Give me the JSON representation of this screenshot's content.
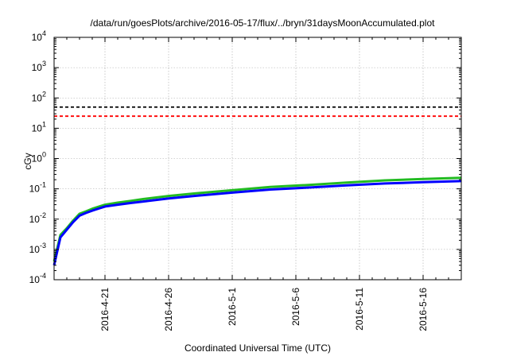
{
  "chart_data": {
    "type": "line",
    "title": "/data/run/goesPlots/archive/2016-05-17/flux/../bryn/31daysMoonAccumulated.plot",
    "xlabel": "Coordinated Universal Time (UTC)",
    "ylabel": "cGy",
    "y_scale": "log",
    "ylim": [
      0.0001,
      10000
    ],
    "xlim": [
      "2016-04-17",
      "2016-05-19"
    ],
    "grid": true,
    "legend": "none",
    "y_ticks": [
      {
        "value": 0.0001,
        "base": "10",
        "exp": "-4"
      },
      {
        "value": 0.001,
        "base": "10",
        "exp": "-3"
      },
      {
        "value": 0.01,
        "base": "10",
        "exp": "-2"
      },
      {
        "value": 0.1,
        "base": "10",
        "exp": "-1"
      },
      {
        "value": 1,
        "base": "10",
        "exp": "0"
      },
      {
        "value": 10,
        "base": "10",
        "exp": "1"
      },
      {
        "value": 100,
        "base": "10",
        "exp": "2"
      },
      {
        "value": 1000,
        "base": "10",
        "exp": "3"
      },
      {
        "value": 10000,
        "base": "10",
        "exp": "4"
      }
    ],
    "x_ticks": [
      "2016-4-21",
      "2016-4-26",
      "2016-5-1",
      "2016-5-6",
      "2016-5-11",
      "2016-5-16"
    ],
    "reference_lines": [
      {
        "value": 50,
        "color": "#000000"
      },
      {
        "value": 25,
        "color": "#ff0000"
      }
    ],
    "series": [
      {
        "color": "#22bb22",
        "x": [
          "2016-04-17 00:00",
          "2016-04-17 12:00",
          "2016-04-18 00:00",
          "2016-04-18 12:00",
          "2016-04-19 00:00",
          "2016-04-19 12:00",
          "2016-04-20 00:00",
          "2016-04-21 00:00",
          "2016-04-22 00:00",
          "2016-04-23 00:00",
          "2016-04-24 00:00",
          "2016-04-26 00:00",
          "2016-04-28 00:00",
          "2016-05-01 00:00",
          "2016-05-04 00:00",
          "2016-05-07 00:00",
          "2016-05-10 00:00",
          "2016-05-13 00:00",
          "2016-05-16 00:00",
          "2016-05-19 00:00"
        ],
        "values": [
          0.0004,
          0.003,
          0.005,
          0.009,
          0.015,
          0.018,
          0.022,
          0.03,
          0.035,
          0.04,
          0.046,
          0.058,
          0.07,
          0.09,
          0.115,
          0.135,
          0.16,
          0.19,
          0.21,
          0.23
        ]
      },
      {
        "color": "#0000ff",
        "x": [
          "2016-04-17 00:00",
          "2016-04-17 12:00",
          "2016-04-18 00:00",
          "2016-04-18 12:00",
          "2016-04-19 00:00",
          "2016-04-19 12:00",
          "2016-04-20 00:00",
          "2016-04-21 00:00",
          "2016-04-22 00:00",
          "2016-04-23 00:00",
          "2016-04-24 00:00",
          "2016-04-26 00:00",
          "2016-04-28 00:00",
          "2016-05-01 00:00",
          "2016-05-04 00:00",
          "2016-05-07 00:00",
          "2016-05-10 00:00",
          "2016-05-13 00:00",
          "2016-05-16 00:00",
          "2016-05-19 00:00"
        ],
        "values": [
          0.0003,
          0.0025,
          0.0045,
          0.008,
          0.013,
          0.016,
          0.019,
          0.026,
          0.03,
          0.034,
          0.038,
          0.048,
          0.058,
          0.075,
          0.095,
          0.11,
          0.13,
          0.15,
          0.165,
          0.18
        ]
      }
    ]
  }
}
